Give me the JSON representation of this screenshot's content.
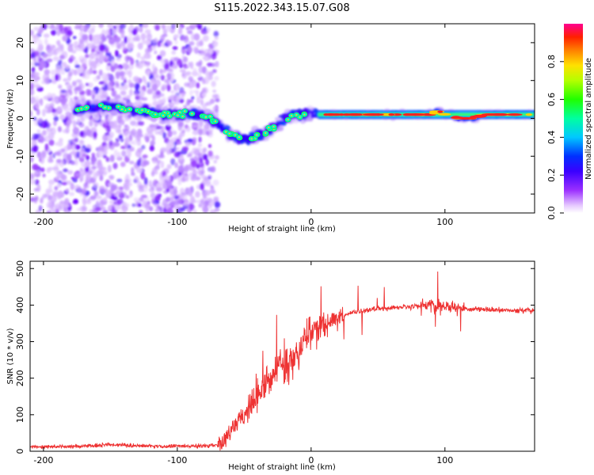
{
  "title": "S115.2022.343.15.07.G08",
  "chart_data": [
    {
      "type": "heatmap",
      "panel": "spectrogram",
      "xlabel": "Height of straight line (km)",
      "ylabel": "Frequency (Hz)",
      "xlim": [
        -210,
        167
      ],
      "ylim": [
        -25,
        25
      ],
      "x_ticks": [
        -200,
        -100,
        0,
        100
      ],
      "y_ticks": [
        -20,
        -10,
        0,
        10,
        20
      ],
      "colorbar": {
        "label": "Normalized spectral amplitude",
        "range": [
          0,
          1
        ],
        "ticks": [
          0.0,
          0.2,
          0.4,
          0.6,
          0.8
        ]
      },
      "dominant_frequency_ridge": {
        "x": [
          -175,
          -165,
          -155,
          -145,
          -135,
          -125,
          -115,
          -105,
          -95,
          -85,
          -75,
          -68,
          -62,
          -55,
          -48,
          -42,
          -36,
          -30,
          -24,
          -18,
          -12,
          -6,
          0,
          5,
          10,
          20,
          30,
          40,
          50,
          60,
          70,
          80,
          90,
          95,
          100,
          105,
          110,
          120,
          130,
          140,
          150,
          160,
          167
        ],
        "y": [
          2,
          3,
          3,
          3,
          2,
          2,
          1,
          1,
          1,
          1,
          0,
          -2,
          -4,
          -5,
          -6,
          -5,
          -4,
          -3,
          -1,
          0,
          1,
          1,
          1,
          1,
          1,
          1,
          1,
          1,
          1,
          1,
          1,
          1,
          1,
          2,
          1,
          1,
          0,
          0,
          1,
          1,
          1,
          1,
          1
        ]
      }
    },
    {
      "type": "line",
      "panel": "snr",
      "xlabel": "Height of straight line (km)",
      "ylabel": "SNR (10 * v/v)",
      "xlim": [
        -210,
        167
      ],
      "ylim": [
        0,
        520
      ],
      "x_ticks": [
        -200,
        -100,
        0,
        100
      ],
      "y_ticks": [
        0,
        100,
        200,
        300,
        400,
        500
      ],
      "series": [
        {
          "color": "#ee3333",
          "x": [
            -210,
            -190,
            -170,
            -150,
            -130,
            -110,
            -90,
            -80,
            -70,
            -65,
            -60,
            -55,
            -50,
            -45,
            -40,
            -35,
            -30,
            -25,
            -20,
            -15,
            -10,
            -5,
            0,
            5,
            10,
            15,
            20,
            25,
            30,
            40,
            50,
            60,
            70,
            80,
            90,
            95,
            100,
            110,
            120,
            130,
            140,
            150,
            160,
            167
          ],
          "y": [
            12,
            12,
            14,
            18,
            15,
            14,
            14,
            15,
            18,
            30,
            55,
            80,
            100,
            120,
            150,
            180,
            200,
            220,
            240,
            260,
            280,
            300,
            320,
            335,
            345,
            355,
            365,
            372,
            378,
            385,
            390,
            392,
            395,
            397,
            398,
            395,
            395,
            392,
            390,
            388,
            386,
            385,
            385,
            385
          ]
        }
      ]
    }
  ]
}
